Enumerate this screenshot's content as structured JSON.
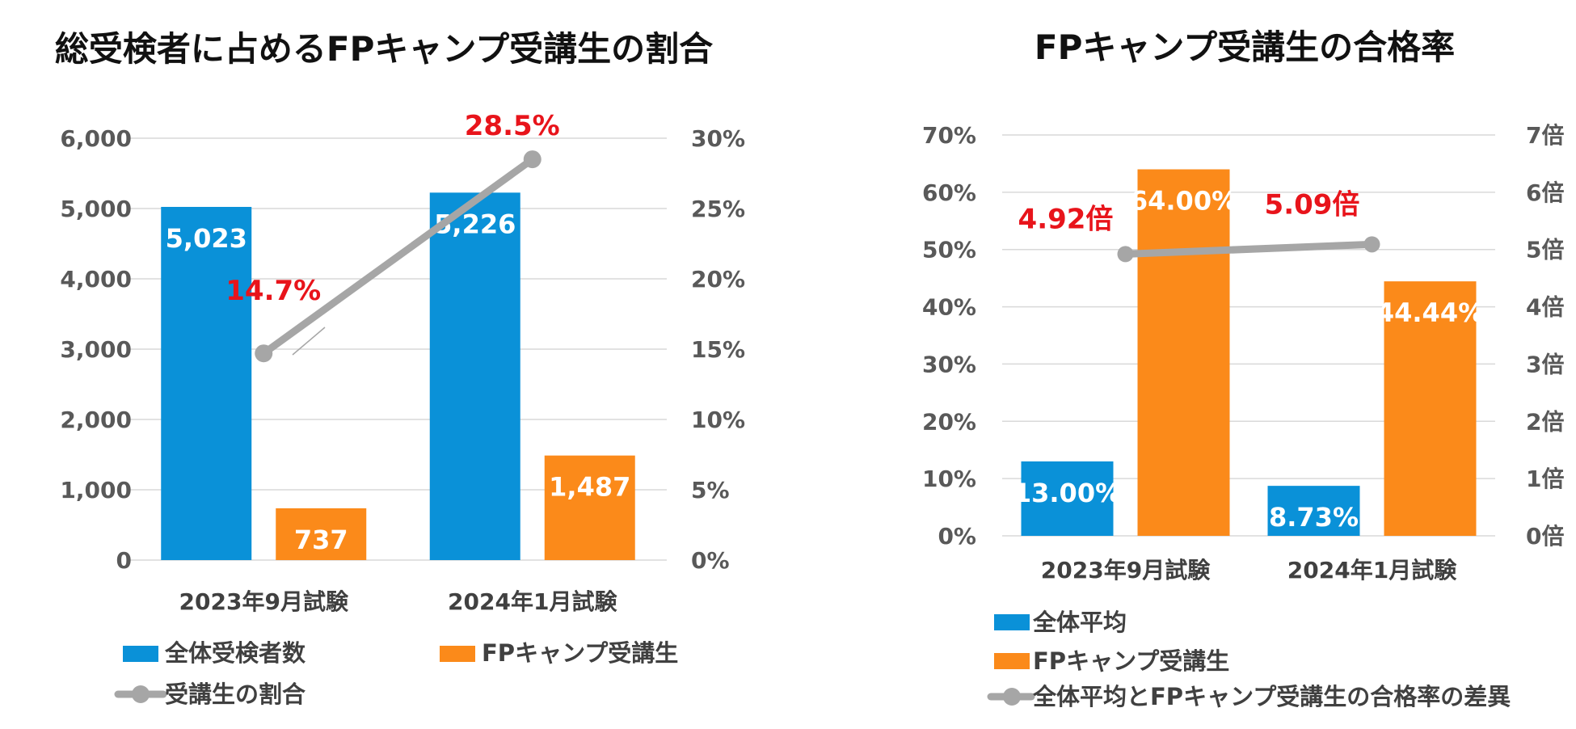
{
  "chart_data": [
    {
      "type": "bar",
      "title": "総受検者に占めるFPキャンプ受講生の割合",
      "categories": [
        "2023年9月試験",
        "2024年1月試験"
      ],
      "series": [
        {
          "name": "全体受検者数",
          "kind": "bar",
          "axis": "left",
          "color": "#0a91d8",
          "values": [
            5023,
            5226
          ],
          "labels": [
            "5,023",
            "5,226"
          ]
        },
        {
          "name": "FPキャンプ受講生",
          "kind": "bar",
          "axis": "left",
          "color": "#fb8a1a",
          "values": [
            737,
            1487
          ],
          "labels": [
            "737",
            "1,487"
          ]
        },
        {
          "name": "受講生の割合",
          "kind": "line",
          "axis": "right",
          "color": "#a6a6a6",
          "values": [
            14.7,
            28.5
          ],
          "labels": [
            "14.7%",
            "28.5%"
          ]
        }
      ],
      "y_left": {
        "ylim": [
          0,
          6000
        ],
        "ticks": [
          "0",
          "1,000",
          "2,000",
          "3,000",
          "4,000",
          "5,000",
          "6,000"
        ]
      },
      "y_right": {
        "ylim": [
          0,
          30
        ],
        "ticks": [
          "0%",
          "5%",
          "10%",
          "15%",
          "20%",
          "25%",
          "30%"
        ]
      },
      "legend": "bottom"
    },
    {
      "type": "bar",
      "title": "FPキャンプ受講生の合格率",
      "categories": [
        "2023年9月試験",
        "2024年1月試験"
      ],
      "series": [
        {
          "name": "全体平均",
          "kind": "bar",
          "axis": "left",
          "color": "#0a91d8",
          "values": [
            13.0,
            8.73
          ],
          "labels": [
            "13.00%",
            "8.73%"
          ]
        },
        {
          "name": "FPキャンプ受講生",
          "kind": "bar",
          "axis": "left",
          "color": "#fb8a1a",
          "values": [
            64.0,
            44.44
          ],
          "labels": [
            "64.00%",
            "44.44%"
          ]
        },
        {
          "name": "全体平均とFPキャンプ受講生の合格率の差異",
          "kind": "line",
          "axis": "right",
          "color": "#a6a6a6",
          "values": [
            4.92,
            5.09
          ],
          "labels": [
            "4.92倍",
            "5.09倍"
          ]
        }
      ],
      "y_left": {
        "ylim": [
          0,
          70
        ],
        "ticks": [
          "0%",
          "10%",
          "20%",
          "30%",
          "40%",
          "50%",
          "60%",
          "70%"
        ]
      },
      "y_right": {
        "ylim": [
          0,
          7
        ],
        "ticks": [
          "0倍",
          "1倍",
          "2倍",
          "3倍",
          "4倍",
          "5倍",
          "6倍",
          "7倍"
        ]
      },
      "legend": "bottom"
    }
  ]
}
